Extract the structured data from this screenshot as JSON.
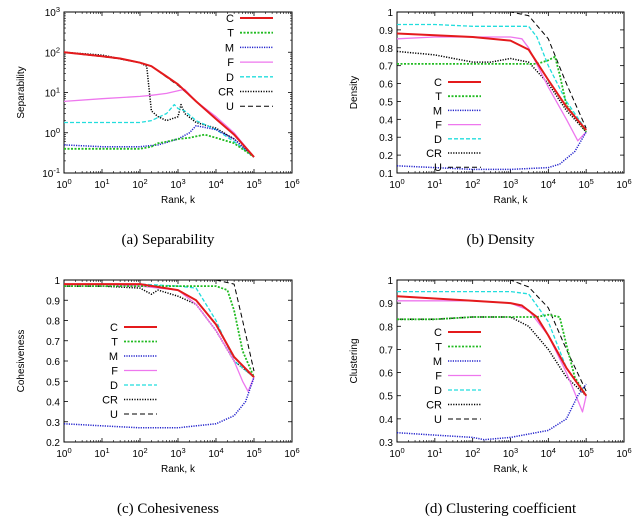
{
  "chart_data": [
    {
      "type": "line",
      "caption": "(a) Separability",
      "xlabel": "Rank, k",
      "ylabel": "Separability",
      "xscale": "log",
      "yscale": "log",
      "xlim": [
        1,
        1000000
      ],
      "ylim": [
        0.1,
        1000
      ],
      "xticks": [
        1,
        10,
        100,
        1000,
        10000,
        100000,
        1000000
      ],
      "xtick_labels": [
        "10^0",
        "10^1",
        "10^2",
        "10^3",
        "10^4",
        "10^5",
        "10^6"
      ],
      "yticks": [
        0.1,
        1,
        10,
        100,
        1000
      ],
      "ytick_labels": [
        "10^-1",
        "10^0",
        "10^1",
        "10^2",
        "10^3"
      ],
      "legend_position": "top-right",
      "series": [
        {
          "name": "C",
          "x": [
            1,
            3,
            10,
            30,
            100,
            200,
            500,
            1000,
            3000,
            10000,
            30000,
            100000
          ],
          "y": [
            100,
            90,
            80,
            70,
            55,
            45,
            25,
            16,
            6,
            2.2,
            0.9,
            0.25
          ]
        },
        {
          "name": "T",
          "x": [
            1,
            10,
            100,
            200,
            300,
            500,
            1000,
            2000,
            5000,
            10000,
            30000,
            100000
          ],
          "y": [
            0.4,
            0.4,
            0.4,
            0.45,
            0.55,
            0.6,
            0.7,
            0.75,
            0.9,
            0.75,
            0.55,
            0.25
          ]
        },
        {
          "name": "M",
          "x": [
            1,
            10,
            100,
            300,
            1000,
            2000,
            3000,
            10000,
            30000,
            100000
          ],
          "y": [
            0.5,
            0.45,
            0.45,
            0.5,
            0.7,
            1.0,
            1.5,
            1.2,
            0.7,
            0.25
          ]
        },
        {
          "name": "F",
          "x": [
            1,
            10,
            100,
            200,
            500,
            1000,
            1500,
            3000,
            10000,
            30000,
            100000
          ],
          "y": [
            6,
            7,
            8,
            8.5,
            9.5,
            11,
            12,
            6,
            2.5,
            1.0,
            0.25
          ]
        },
        {
          "name": "D",
          "x": [
            1,
            10,
            100,
            200,
            500,
            800,
            1000,
            1500,
            3000,
            10000,
            30000,
            100000
          ],
          "y": [
            1.8,
            1.8,
            1.8,
            2.0,
            3.0,
            5.0,
            4.0,
            3.5,
            2.0,
            1.2,
            0.6,
            0.25
          ]
        },
        {
          "name": "CR",
          "x": [
            1,
            10,
            100,
            150,
            200,
            300,
            500,
            1000,
            1200,
            1500,
            3000,
            10000,
            30000,
            100000
          ],
          "y": [
            100,
            85,
            55,
            45,
            3.5,
            2.5,
            2.0,
            2.5,
            5.0,
            3.0,
            1.8,
            1.3,
            0.7,
            0.25
          ]
        },
        {
          "name": "U",
          "x": [
            1,
            3,
            10,
            30,
            100,
            200,
            500,
            1000,
            3000,
            10000,
            30000,
            100000
          ],
          "y": [
            100,
            88,
            78,
            68,
            55,
            45,
            24,
            15,
            6,
            2.2,
            0.9,
            0.25
          ]
        }
      ]
    },
    {
      "type": "line",
      "caption": "(b) Density",
      "xlabel": "Rank, k",
      "ylabel": "Density",
      "xscale": "log",
      "yscale": "linear",
      "xlim": [
        1,
        1000000
      ],
      "ylim": [
        0.1,
        1.0
      ],
      "xticks": [
        1,
        10,
        100,
        1000,
        10000,
        100000,
        1000000
      ],
      "xtick_labels": [
        "10^0",
        "10^1",
        "10^2",
        "10^3",
        "10^4",
        "10^5",
        "10^6"
      ],
      "yticks": [
        0.1,
        0.2,
        0.3,
        0.4,
        0.5,
        0.6,
        0.7,
        0.8,
        0.9,
        1
      ],
      "ytick_labels": [
        "0.1",
        "0.2",
        "0.3",
        "0.4",
        "0.5",
        "0.6",
        "0.7",
        "0.8",
        "0.9",
        "1"
      ],
      "legend_position": "center",
      "series": [
        {
          "name": "C",
          "x": [
            1,
            10,
            100,
            1000,
            3000,
            10000,
            30000,
            100000
          ],
          "y": [
            0.88,
            0.87,
            0.86,
            0.84,
            0.79,
            0.62,
            0.47,
            0.34
          ]
        },
        {
          "name": "T",
          "x": [
            1,
            10,
            100,
            1000,
            5000,
            10000,
            15000,
            20000,
            30000,
            100000
          ],
          "y": [
            0.71,
            0.71,
            0.71,
            0.71,
            0.71,
            0.73,
            0.75,
            0.65,
            0.48,
            0.33
          ]
        },
        {
          "name": "M",
          "x": [
            1,
            10,
            100,
            1000,
            10000,
            20000,
            50000,
            100000
          ],
          "y": [
            0.14,
            0.13,
            0.12,
            0.12,
            0.13,
            0.15,
            0.22,
            0.33
          ]
        },
        {
          "name": "F",
          "x": [
            1,
            10,
            100,
            1000,
            2000,
            3000,
            10000,
            30000,
            60000,
            100000
          ],
          "y": [
            0.85,
            0.86,
            0.86,
            0.86,
            0.85,
            0.8,
            0.58,
            0.4,
            0.28,
            0.33
          ]
        },
        {
          "name": "D",
          "x": [
            1,
            10,
            100,
            1000,
            3000,
            5000,
            10000,
            30000,
            100000
          ],
          "y": [
            0.93,
            0.93,
            0.92,
            0.92,
            0.92,
            0.86,
            0.7,
            0.5,
            0.34
          ]
        },
        {
          "name": "CR",
          "x": [
            1,
            10,
            100,
            300,
            1000,
            3000,
            10000,
            30000,
            100000
          ],
          "y": [
            0.78,
            0.76,
            0.72,
            0.72,
            0.74,
            0.72,
            0.6,
            0.45,
            0.33
          ]
        },
        {
          "name": "U",
          "x": [
            1,
            100,
            1000,
            3000,
            10000,
            30000,
            100000
          ],
          "y": [
            1.0,
            1.0,
            1.0,
            0.98,
            0.85,
            0.6,
            0.35
          ]
        }
      ]
    },
    {
      "type": "line",
      "caption": "(c) Cohesiveness",
      "xlabel": "Rank, k",
      "ylabel": "Cohesiveness",
      "xscale": "log",
      "yscale": "linear",
      "xlim": [
        1,
        1000000
      ],
      "ylim": [
        0.2,
        1.0
      ],
      "xticks": [
        1,
        10,
        100,
        1000,
        10000,
        100000,
        1000000
      ],
      "xtick_labels": [
        "10^0",
        "10^1",
        "10^2",
        "10^3",
        "10^4",
        "10^5",
        "10^6"
      ],
      "yticks": [
        0.2,
        0.3,
        0.4,
        0.5,
        0.6,
        0.7,
        0.8,
        0.9,
        1
      ],
      "ytick_labels": [
        "0.2",
        "0.3",
        "0.4",
        "0.5",
        "0.6",
        "0.7",
        "0.8",
        "0.9",
        "1"
      ],
      "legend_position": "center-left",
      "series": [
        {
          "name": "C",
          "x": [
            1,
            10,
            100,
            1000,
            3000,
            10000,
            30000,
            100000
          ],
          "y": [
            0.98,
            0.98,
            0.98,
            0.95,
            0.9,
            0.78,
            0.62,
            0.52
          ]
        },
        {
          "name": "T",
          "x": [
            1,
            10,
            100,
            1000,
            10000,
            20000,
            30000,
            50000,
            100000
          ],
          "y": [
            0.97,
            0.97,
            0.97,
            0.97,
            0.97,
            0.95,
            0.85,
            0.65,
            0.52
          ]
        },
        {
          "name": "M",
          "x": [
            1,
            10,
            100,
            1000,
            10000,
            30000,
            60000,
            100000
          ],
          "y": [
            0.29,
            0.28,
            0.27,
            0.27,
            0.29,
            0.33,
            0.4,
            0.52
          ]
        },
        {
          "name": "F",
          "x": [
            1,
            10,
            100,
            1000,
            3000,
            10000,
            30000,
            50000,
            70000,
            100000
          ],
          "y": [
            0.98,
            0.98,
            0.97,
            0.95,
            0.88,
            0.75,
            0.6,
            0.5,
            0.45,
            0.52
          ]
        },
        {
          "name": "D",
          "x": [
            1,
            10,
            100,
            1000,
            3000,
            10000,
            30000,
            100000
          ],
          "y": [
            0.98,
            0.98,
            0.98,
            0.97,
            0.96,
            0.8,
            0.6,
            0.52
          ]
        },
        {
          "name": "CR",
          "x": [
            1,
            10,
            100,
            200,
            300,
            1000,
            3000,
            10000,
            30000,
            100000
          ],
          "y": [
            0.97,
            0.97,
            0.96,
            0.93,
            0.95,
            0.92,
            0.88,
            0.75,
            0.6,
            0.52
          ]
        },
        {
          "name": "U",
          "x": [
            1,
            1000,
            10000,
            30000,
            50000,
            100000
          ],
          "y": [
            1.0,
            1.0,
            1.0,
            0.98,
            0.8,
            0.55
          ]
        }
      ]
    },
    {
      "type": "line",
      "caption": "(d) Clustering coefficient",
      "xlabel": "Rank, k",
      "ylabel": "Clustering",
      "xscale": "log",
      "yscale": "linear",
      "xlim": [
        1,
        1000000
      ],
      "ylim": [
        0.3,
        1.0
      ],
      "xticks": [
        1,
        10,
        100,
        1000,
        10000,
        100000,
        1000000
      ],
      "xtick_labels": [
        "10^0",
        "10^1",
        "10^2",
        "10^3",
        "10^4",
        "10^5",
        "10^6"
      ],
      "yticks": [
        0.3,
        0.4,
        0.5,
        0.6,
        0.7,
        0.8,
        0.9,
        1
      ],
      "ytick_labels": [
        "0.3",
        "0.4",
        "0.5",
        "0.6",
        "0.7",
        "0.8",
        "0.9",
        "1"
      ],
      "legend_position": "center-left",
      "series": [
        {
          "name": "C",
          "x": [
            1,
            10,
            100,
            1000,
            2000,
            5000,
            10000,
            30000,
            100000
          ],
          "y": [
            0.93,
            0.92,
            0.91,
            0.9,
            0.89,
            0.84,
            0.76,
            0.62,
            0.5
          ]
        },
        {
          "name": "T",
          "x": [
            1,
            10,
            100,
            1000,
            5000,
            10000,
            20000,
            30000,
            50000,
            100000
          ],
          "y": [
            0.83,
            0.83,
            0.84,
            0.84,
            0.84,
            0.85,
            0.84,
            0.72,
            0.58,
            0.5
          ]
        },
        {
          "name": "M",
          "x": [
            1,
            10,
            100,
            200,
            1000,
            10000,
            30000,
            60000,
            100000
          ],
          "y": [
            0.34,
            0.33,
            0.32,
            0.31,
            0.32,
            0.35,
            0.4,
            0.5,
            0.55
          ]
        },
        {
          "name": "F",
          "x": [
            1,
            10,
            100,
            1000,
            3000,
            10000,
            30000,
            60000,
            80000,
            100000
          ],
          "y": [
            0.91,
            0.91,
            0.91,
            0.9,
            0.87,
            0.76,
            0.6,
            0.48,
            0.43,
            0.5
          ]
        },
        {
          "name": "D",
          "x": [
            1,
            10,
            100,
            1000,
            3000,
            10000,
            30000,
            100000
          ],
          "y": [
            0.95,
            0.95,
            0.95,
            0.95,
            0.94,
            0.82,
            0.62,
            0.5
          ]
        },
        {
          "name": "CR",
          "x": [
            1,
            10,
            100,
            300,
            1000,
            3000,
            10000,
            30000,
            100000
          ],
          "y": [
            0.83,
            0.83,
            0.84,
            0.84,
            0.84,
            0.8,
            0.7,
            0.58,
            0.5
          ]
        },
        {
          "name": "U",
          "x": [
            1,
            100,
            1000,
            3000,
            10000,
            30000,
            100000
          ],
          "y": [
            1.0,
            1.0,
            1.0,
            0.97,
            0.88,
            0.7,
            0.52
          ]
        }
      ]
    }
  ],
  "styles": {
    "C": {
      "color": "#e41a1c",
      "dash": "none",
      "width": 2
    },
    "T": {
      "color": "#22bb22",
      "dash": "2,1.5",
      "width": 1.8
    },
    "M": {
      "color": "#2222cc",
      "dash": "1.2,1.2",
      "width": 1.5
    },
    "F": {
      "color": "#ee77ee",
      "dash": "none",
      "width": 1.3
    },
    "D": {
      "color": "#22dddd",
      "dash": "4,2",
      "width": 1.3
    },
    "CR": {
      "color": "#000000",
      "dash": "1.2,1.4",
      "width": 1.5
    },
    "U": {
      "color": "#000000",
      "dash": "5,3",
      "width": 1
    }
  }
}
